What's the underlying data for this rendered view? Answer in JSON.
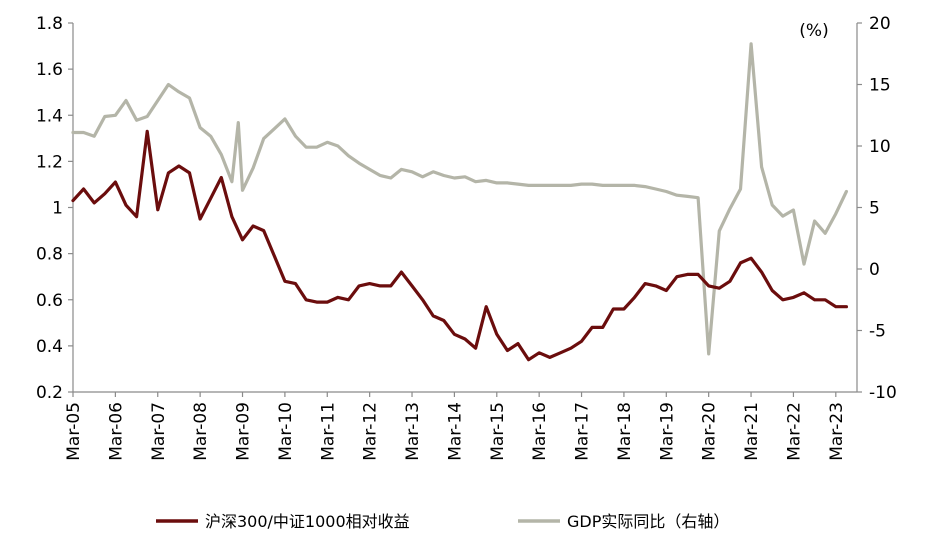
{
  "chart_data": {
    "type": "line",
    "unit_label": "(%)",
    "x_tick_labels": [
      "Mar-05",
      "Mar-06",
      "Mar-07",
      "Mar-08",
      "Mar-09",
      "Mar-10",
      "Mar-11",
      "Mar-12",
      "Mar-13",
      "Mar-14",
      "Mar-15",
      "Mar-16",
      "Mar-17",
      "Mar-18",
      "Mar-19",
      "Mar-20",
      "Mar-21",
      "Mar-22",
      "Mar-23"
    ],
    "x_range_quarters": [
      0,
      74
    ],
    "y_left": {
      "range": [
        0.2,
        1.8
      ],
      "ticks": [
        "0.2",
        "0.4",
        "0.6",
        "0.8",
        "1",
        "1.2",
        "1.4",
        "1.6",
        "1.8"
      ]
    },
    "y_right": {
      "range": [
        -10,
        20
      ],
      "ticks": [
        "-10",
        "-5",
        "0",
        "5",
        "10",
        "15",
        "20"
      ]
    },
    "grid": false,
    "legend_position": "bottom",
    "colors": {
      "ratio": "#6b0d0d",
      "gdp": "#b4b5a8"
    },
    "series": [
      {
        "name": "沪深300/中证1000相对收益",
        "axis": "left",
        "color": "#6b0d0d",
        "points": [
          [
            0,
            1.03
          ],
          [
            1,
            1.08
          ],
          [
            2,
            1.02
          ],
          [
            3,
            1.06
          ],
          [
            4,
            1.11
          ],
          [
            5,
            1.01
          ],
          [
            6,
            0.96
          ],
          [
            7,
            1.33
          ],
          [
            8,
            0.99
          ],
          [
            9,
            1.15
          ],
          [
            10,
            1.18
          ],
          [
            11,
            1.15
          ],
          [
            12,
            0.95
          ],
          [
            13,
            1.04
          ],
          [
            14,
            1.13
          ],
          [
            15,
            0.96
          ],
          [
            16,
            0.86
          ],
          [
            17,
            0.92
          ],
          [
            18,
            0.9
          ],
          [
            19,
            0.79
          ],
          [
            20,
            0.68
          ],
          [
            21,
            0.67
          ],
          [
            22,
            0.6
          ],
          [
            23,
            0.59
          ],
          [
            24,
            0.59
          ],
          [
            25,
            0.61
          ],
          [
            26,
            0.6
          ],
          [
            27,
            0.66
          ],
          [
            28,
            0.67
          ],
          [
            29,
            0.66
          ],
          [
            30,
            0.66
          ],
          [
            31,
            0.72
          ],
          [
            32,
            0.66
          ],
          [
            33,
            0.6
          ],
          [
            34,
            0.53
          ],
          [
            35,
            0.51
          ],
          [
            36,
            0.45
          ],
          [
            37,
            0.43
          ],
          [
            38,
            0.39
          ],
          [
            39,
            0.57
          ],
          [
            40,
            0.45
          ],
          [
            41,
            0.38
          ],
          [
            42,
            0.41
          ],
          [
            43,
            0.34
          ],
          [
            44,
            0.37
          ],
          [
            45,
            0.35
          ],
          [
            46,
            0.37
          ],
          [
            47,
            0.39
          ],
          [
            48,
            0.42
          ],
          [
            49,
            0.48
          ],
          [
            50,
            0.48
          ],
          [
            51,
            0.56
          ],
          [
            52,
            0.56
          ],
          [
            53,
            0.61
          ],
          [
            54,
            0.67
          ],
          [
            55,
            0.66
          ],
          [
            56,
            0.64
          ],
          [
            57,
            0.7
          ],
          [
            58,
            0.71
          ],
          [
            59,
            0.71
          ],
          [
            60,
            0.66
          ],
          [
            61,
            0.65
          ],
          [
            62,
            0.68
          ],
          [
            63,
            0.76
          ],
          [
            64,
            0.78
          ],
          [
            65,
            0.72
          ],
          [
            66,
            0.64
          ],
          [
            67,
            0.6
          ],
          [
            68,
            0.61
          ],
          [
            69,
            0.63
          ],
          [
            70,
            0.6
          ],
          [
            71,
            0.6
          ],
          [
            72,
            0.57
          ],
          [
            73,
            0.57
          ]
        ]
      },
      {
        "name": "GDP实际同比（右轴）",
        "axis": "right",
        "color": "#b4b5a8",
        "points": [
          [
            0,
            11.1
          ],
          [
            1,
            11.1
          ],
          [
            2,
            10.8
          ],
          [
            3,
            12.4
          ],
          [
            4,
            12.5
          ],
          [
            5,
            13.7
          ],
          [
            6,
            12.1
          ],
          [
            7,
            12.4
          ],
          [
            8,
            13.7
          ],
          [
            9,
            15.0
          ],
          [
            10,
            14.4
          ],
          [
            11,
            13.9
          ],
          [
            12,
            11.5
          ],
          [
            13,
            10.8
          ],
          [
            14,
            9.3
          ],
          [
            15,
            7.1
          ],
          [
            15.6,
            11.9
          ],
          [
            16,
            6.4
          ],
          [
            17,
            8.2
          ],
          [
            18,
            10.6
          ],
          [
            19,
            11.4
          ],
          [
            20,
            12.2
          ],
          [
            21,
            10.8
          ],
          [
            22,
            9.9
          ],
          [
            23,
            9.9
          ],
          [
            24,
            10.3
          ],
          [
            25,
            10.0
          ],
          [
            26,
            9.2
          ],
          [
            27,
            8.6
          ],
          [
            28,
            8.1
          ],
          [
            29,
            7.6
          ],
          [
            30,
            7.4
          ],
          [
            31,
            8.1
          ],
          [
            32,
            7.9
          ],
          [
            33,
            7.5
          ],
          [
            34,
            7.9
          ],
          [
            35,
            7.6
          ],
          [
            36,
            7.4
          ],
          [
            37,
            7.5
          ],
          [
            38,
            7.1
          ],
          [
            39,
            7.2
          ],
          [
            40,
            7.0
          ],
          [
            41,
            7.0
          ],
          [
            42,
            6.9
          ],
          [
            43,
            6.8
          ],
          [
            44,
            6.8
          ],
          [
            45,
            6.8
          ],
          [
            46,
            6.8
          ],
          [
            47,
            6.8
          ],
          [
            48,
            6.9
          ],
          [
            49,
            6.9
          ],
          [
            50,
            6.8
          ],
          [
            51,
            6.8
          ],
          [
            52,
            6.8
          ],
          [
            53,
            6.8
          ],
          [
            54,
            6.7
          ],
          [
            55,
            6.5
          ],
          [
            56,
            6.3
          ],
          [
            57,
            6.0
          ],
          [
            58,
            5.9
          ],
          [
            59,
            5.8
          ],
          [
            60,
            -6.9
          ],
          [
            61,
            3.1
          ],
          [
            62,
            4.9
          ],
          [
            63,
            6.5
          ],
          [
            64,
            18.3
          ],
          [
            65,
            8.3
          ],
          [
            66,
            5.2
          ],
          [
            67,
            4.3
          ],
          [
            68,
            4.8
          ],
          [
            69,
            0.4
          ],
          [
            70,
            3.9
          ],
          [
            71,
            2.9
          ],
          [
            72,
            4.5
          ],
          [
            73,
            6.3
          ]
        ]
      }
    ]
  }
}
